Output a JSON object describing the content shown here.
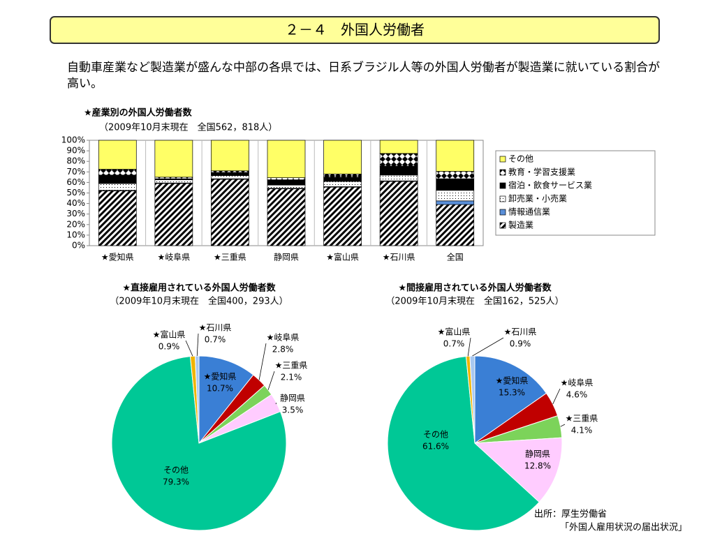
{
  "header": {
    "title": "２－４　外国人労働者"
  },
  "intro": "自動車産業など製造業が盛んな中部の各県では、日系ブラジル人等の外国人労働者が製造業に就いている割合が高い。",
  "source": {
    "publisher": "出所：厚生労働省",
    "report": "「外国人雇用状況の届出状況」"
  },
  "chart_data": [
    {
      "type": "bar",
      "stacked": true,
      "title": "★産業別の外国人労働者数",
      "subtitle": "（2009年10月末現在　全国562，818人）",
      "categories": [
        "★愛知県",
        "★岐阜県",
        "★三重県",
        "静岡県",
        "★富山県",
        "★石川県",
        "全国"
      ],
      "series": [
        {
          "name": "製造業",
          "color": "#000000",
          "pattern": "stripes",
          "values": [
            52,
            59,
            63,
            54,
            55.5,
            61,
            39
          ]
        },
        {
          "name": "情報通信業",
          "color": "#5a8fd8",
          "values": [
            0.5,
            0.5,
            0.5,
            0.5,
            0.5,
            0.5,
            3.5
          ]
        },
        {
          "name": "卸売業・小売業",
          "color": "#000000",
          "pattern": "dots",
          "values": [
            6.5,
            3,
            3,
            3,
            5,
            5.5,
            10
          ]
        },
        {
          "name": "宿泊・飲食サービス業",
          "color": "#000000",
          "values": [
            8,
            1,
            3,
            5,
            4,
            8.5,
            11
          ]
        },
        {
          "name": "教育・学習支援業",
          "color": "#000000",
          "pattern": "diamonds",
          "values": [
            5.5,
            1.5,
            1.5,
            2,
            3,
            12,
            7
          ]
        },
        {
          "name": "その他",
          "color": "#ffff66",
          "values": [
            27.5,
            35,
            29,
            35.5,
            32,
            12.5,
            29.5
          ]
        }
      ],
      "ylim": [
        0,
        100
      ],
      "yticks": [
        {
          "value": 0,
          "label": "0%"
        },
        {
          "value": 10,
          "label": "10%"
        },
        {
          "value": 20,
          "label": "20%"
        },
        {
          "value": 30,
          "label": "30%"
        },
        {
          "value": 40,
          "label": "40%"
        },
        {
          "value": 50,
          "label": "50%"
        },
        {
          "value": 60,
          "label": "60%"
        },
        {
          "value": 70,
          "label": "70%"
        },
        {
          "value": 80,
          "label": "80%"
        },
        {
          "value": 90,
          "label": "90%"
        },
        {
          "value": 100,
          "label": "100%"
        }
      ],
      "legend": "right"
    },
    {
      "type": "pie",
      "title": "★直接雇用されている外国人労働者数",
      "subtitle": "（2009年10月末現在　全国400，293人）",
      "categories": [
        "★愛知県",
        "★岐阜県",
        "★三重県",
        "静岡県",
        "その他",
        "★富山県",
        "★石川県"
      ],
      "values": [
        10.7,
        2.8,
        2.1,
        3.5,
        79.3,
        0.9,
        0.7
      ],
      "value_labels": [
        "10.7%",
        "2.8%",
        "2.1%",
        "3.5%",
        "79.3%",
        "0.9%",
        "0.7%"
      ],
      "colors": [
        "#3a7fd5",
        "#c00000",
        "#7cd35a",
        "#ffccff",
        "#00c896",
        "#f0b400",
        "#a8c8f0"
      ]
    },
    {
      "type": "pie",
      "title": "★間接雇用されている外国人労働者数",
      "subtitle": "（2009年10月末現在　全国162，525人）",
      "categories": [
        "★愛知県",
        "★岐阜県",
        "★三重県",
        "静岡県",
        "その他",
        "★富山県",
        "★石川県"
      ],
      "values": [
        15.3,
        4.6,
        4.1,
        12.8,
        61.6,
        0.7,
        0.9
      ],
      "value_labels": [
        "15.3%",
        "4.6%",
        "4.1%",
        "12.8%",
        "61.6%",
        "0.7%",
        "0.9%"
      ],
      "colors": [
        "#3a7fd5",
        "#c00000",
        "#7cd35a",
        "#ffccff",
        "#00c896",
        "#f0b400",
        "#a8c8f0"
      ]
    }
  ]
}
